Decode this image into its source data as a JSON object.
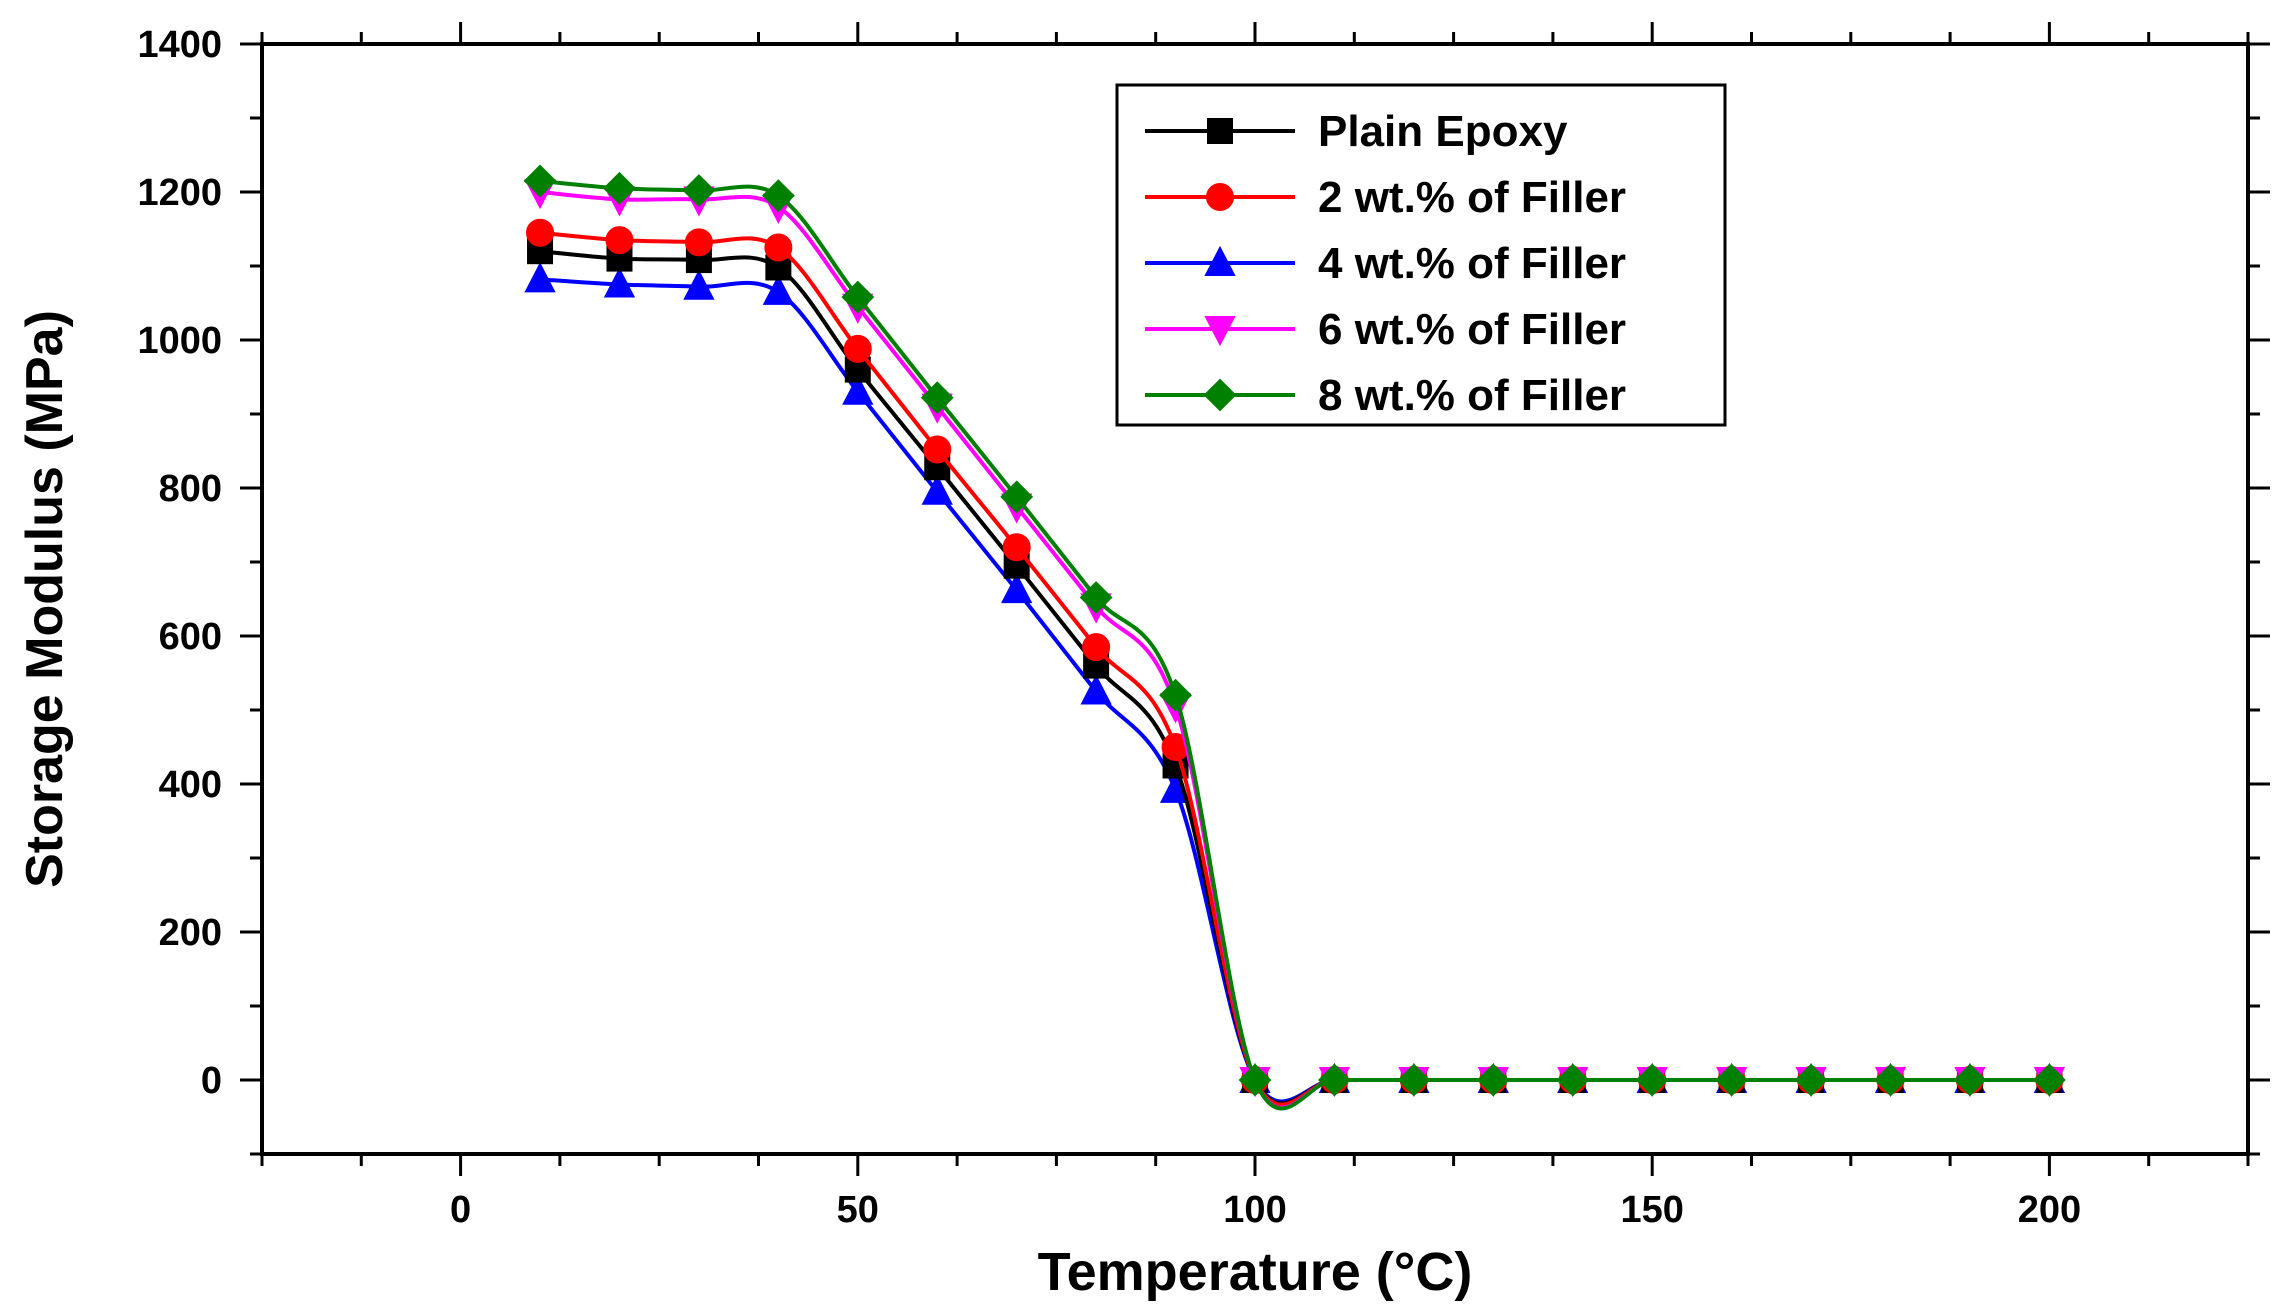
{
  "chart_data": {
    "type": "line",
    "xlabel": "Temperature (°C)",
    "ylabel": "Storage Modulus (MPa)",
    "xlim": [
      -25,
      225
    ],
    "ylim": [
      -100,
      1400
    ],
    "x_ticks": [
      0,
      50,
      100,
      150,
      200
    ],
    "y_ticks": [
      0,
      200,
      400,
      600,
      800,
      1000,
      1200,
      1400
    ],
    "grid": false,
    "legend_position": "top-right",
    "x": [
      10,
      20,
      30,
      40,
      50,
      60,
      70,
      80,
      90,
      100,
      110,
      120,
      130,
      140,
      150,
      160,
      170,
      180,
      190,
      200
    ],
    "series": [
      {
        "name": "Plain Epoxy",
        "color": "#000000",
        "marker": "square",
        "values": [
          1120,
          1110,
          1108,
          1098,
          960,
          828,
          695,
          560,
          425,
          0,
          0,
          0,
          0,
          0,
          0,
          0,
          0,
          0,
          0,
          0
        ]
      },
      {
        "name": "2 wt.% of Filler",
        "color": "#ff0000",
        "marker": "circle",
        "values": [
          1145,
          1135,
          1132,
          1125,
          988,
          852,
          720,
          585,
          450,
          0,
          0,
          0,
          0,
          0,
          0,
          0,
          0,
          0,
          0,
          0
        ]
      },
      {
        "name": "4 wt.% of Filler",
        "color": "#0000ff",
        "marker": "triangle-up",
        "values": [
          1082,
          1075,
          1072,
          1065,
          930,
          795,
          662,
          525,
          392,
          0,
          0,
          0,
          0,
          0,
          0,
          0,
          0,
          0,
          0,
          0
        ]
      },
      {
        "name": "6 wt.% of Filler",
        "color": "#ff00ff",
        "marker": "triangle-down",
        "values": [
          1200,
          1190,
          1190,
          1180,
          1045,
          910,
          775,
          640,
          505,
          0,
          0,
          0,
          0,
          0,
          0,
          0,
          0,
          0,
          0,
          0
        ]
      },
      {
        "name": "8 wt.% of Filler",
        "color": "#008000",
        "marker": "diamond",
        "values": [
          1215,
          1205,
          1202,
          1195,
          1058,
          922,
          788,
          652,
          520,
          0,
          0,
          0,
          0,
          0,
          0,
          0,
          0,
          0,
          0,
          0
        ]
      }
    ]
  }
}
